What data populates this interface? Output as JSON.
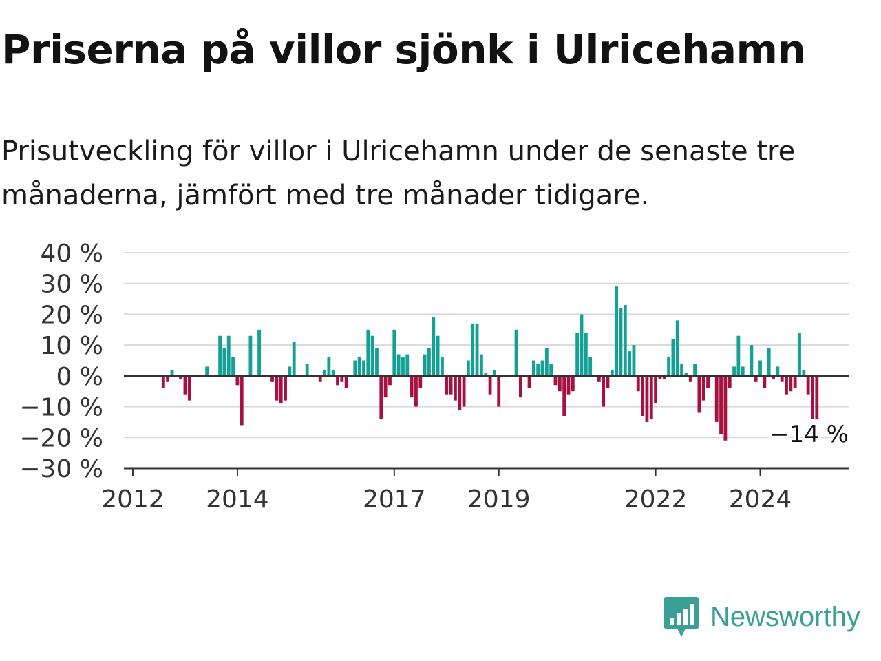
{
  "title": "Priserna på villor sjönk i Ulricehamn",
  "subtitle": "Prisutveckling för villor i Ulricehamn under de senaste tre månaderna, jämfört med tre månader tidigare.",
  "brand": {
    "name": "Newsworthy",
    "icon": "newsworthy-bar-chart-icon",
    "color": "#3a9f95"
  },
  "colors": {
    "positive": "#13a196",
    "negative": "#a8103f",
    "grid": "#d9d9d9",
    "axis": "#333333"
  },
  "chart_data": {
    "type": "bar",
    "ylim": [
      -30,
      40
    ],
    "yticks": [
      40,
      30,
      20,
      10,
      0,
      -10,
      -20,
      -30
    ],
    "ytick_labels": [
      "40 %",
      "30 %",
      "20 %",
      "10 %",
      "0 %",
      "−10 %",
      "−20 %",
      "−30 %"
    ],
    "xticks": [
      2012,
      2014,
      2017,
      2019,
      2022,
      2024
    ],
    "xtick_labels": [
      "2012",
      "2014",
      "2017",
      "2019",
      "2022",
      "2024"
    ],
    "x_start": "2012-01",
    "values": [
      null,
      null,
      null,
      null,
      null,
      -4,
      -2,
      2,
      null,
      -1,
      -6,
      -8,
      null,
      null,
      null,
      3,
      null,
      null,
      13,
      9,
      13,
      6,
      -3,
      -16,
      null,
      13,
      null,
      15,
      null,
      null,
      -2,
      -8,
      -9,
      -8,
      3,
      11,
      null,
      null,
      4,
      null,
      null,
      -2,
      2,
      6,
      2,
      -3,
      -2,
      -4,
      null,
      5,
      6,
      5,
      15,
      13,
      9,
      -14,
      -7,
      -3,
      15,
      7,
      6,
      7,
      -7,
      -10,
      -4,
      7,
      9,
      19,
      13,
      6,
      -6,
      -6,
      -8,
      -11,
      -10,
      5,
      17,
      17,
      7,
      1,
      -6,
      2,
      -10,
      null,
      null,
      null,
      15,
      -7,
      null,
      -4,
      5,
      4,
      5,
      9,
      4,
      -3,
      -5,
      -13,
      -6,
      -5,
      14,
      20,
      14,
      6,
      null,
      -2,
      -10,
      -4,
      2,
      29,
      22,
      23,
      8,
      10,
      -5,
      -13,
      -15,
      -14,
      -9,
      -1,
      -1,
      6,
      12,
      18,
      4,
      1,
      -2,
      4,
      -12,
      -8,
      -4,
      null,
      -15,
      -19,
      -21,
      -4,
      3,
      13,
      3,
      null,
      10,
      -2,
      5,
      -4,
      9,
      -1,
      3,
      -2,
      -6,
      -5,
      -4,
      14,
      2,
      -6,
      -14,
      -14
    ],
    "last_label": "−14 %"
  }
}
